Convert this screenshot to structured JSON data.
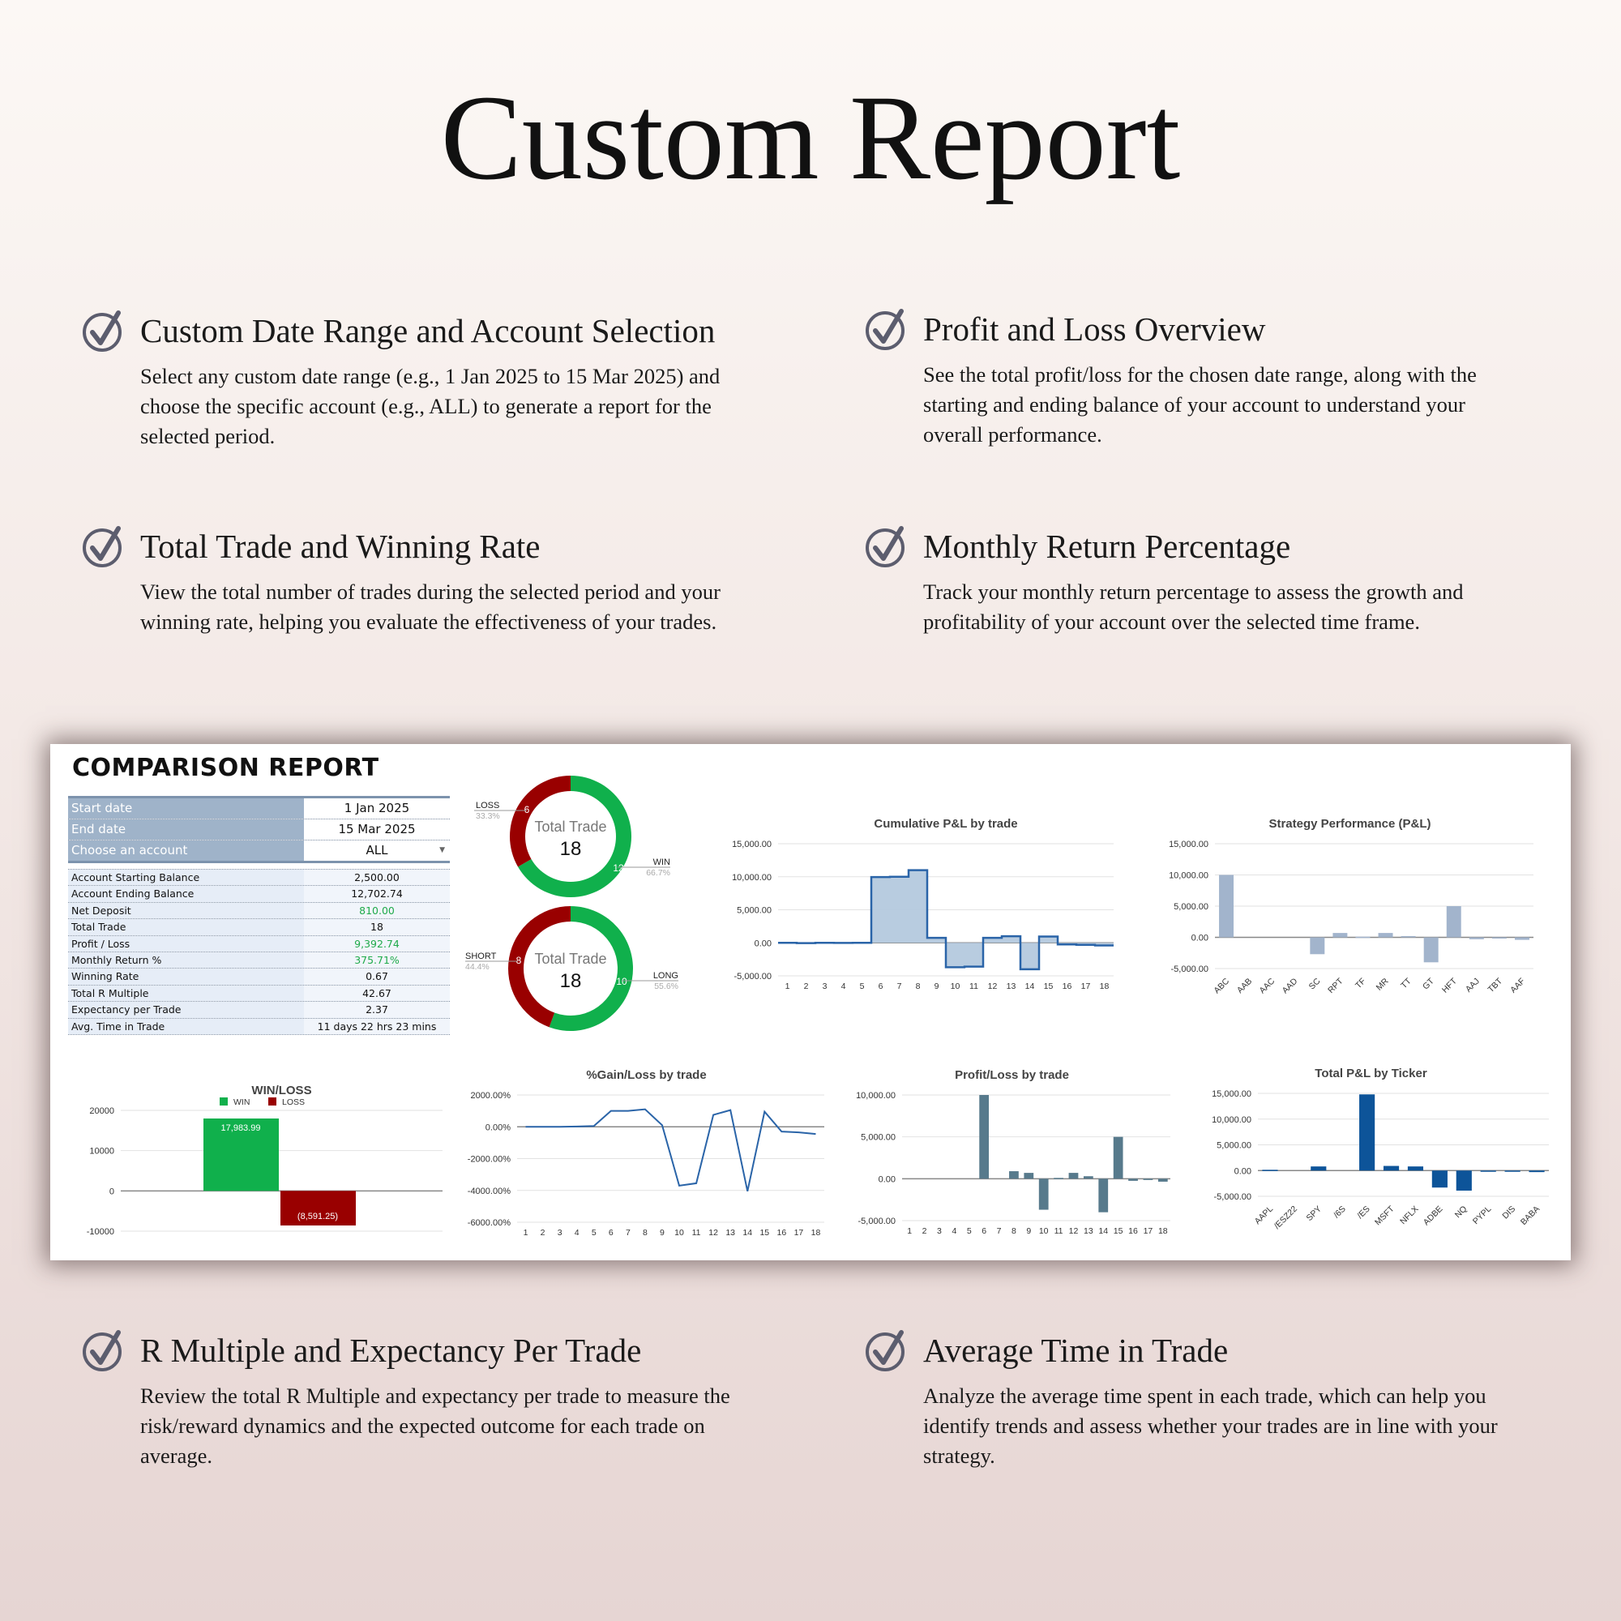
{
  "title": "Custom Report",
  "features": [
    {
      "heading": "Custom Date Range and Account Selection",
      "body": "Select any custom date range (e.g., 1 Jan 2025 to 15 Mar 2025) and choose the specific account (e.g., ALL) to generate a report for the selected period.",
      "icon": "check-circle-icon"
    },
    {
      "heading": "Profit and Loss Overview",
      "body": "See the total profit/loss for the chosen date range, along with the starting and ending balance of your account to understand your overall performance.",
      "icon": "check-circle-icon"
    },
    {
      "heading": "Total Trade and Winning Rate",
      "body": "View the total number of trades during the selected period and your winning rate, helping you evaluate the effectiveness of your trades.",
      "icon": "check-circle-icon"
    },
    {
      "heading": "Monthly Return Percentage",
      "body": "Track your monthly return percentage to assess the growth and profitability of your account over the selected time frame.",
      "icon": "check-circle-icon"
    },
    {
      "heading": "R Multiple and Expectancy Per Trade",
      "body": "Review the total R Multiple and expectancy per trade to measure the risk/reward dynamics and the expected outcome for each trade on average.",
      "icon": "check-circle-icon"
    },
    {
      "heading": "Average Time in Trade",
      "body": "Analyze the average time spent in each trade, which can help you identify trends and assess whether your trades are in line with your strategy.",
      "icon": "check-circle-icon"
    }
  ],
  "report": {
    "title": "COMPARISON REPORT",
    "filters": [
      {
        "label": "Start date",
        "value": "1 Jan 2025"
      },
      {
        "label": "End date",
        "value": "15 Mar 2025"
      },
      {
        "label": "Choose an account",
        "value": "ALL"
      }
    ],
    "stats": [
      {
        "label": "Account Starting Balance",
        "value": "2,500.00"
      },
      {
        "label": "Account Ending Balance",
        "value": "12,702.74"
      },
      {
        "label": "Net Deposit",
        "value": "810.00"
      },
      {
        "label": "Total Trade",
        "value": "18"
      },
      {
        "label": "Profit / Loss",
        "value": "9,392.74"
      },
      {
        "label": "Monthly Return %",
        "value": "375.71%"
      },
      {
        "label": "Winning Rate",
        "value": "0.67"
      },
      {
        "label": "Total R Multiple",
        "value": "42.67"
      },
      {
        "label": "Expectancy per Trade",
        "value": "2.37"
      },
      {
        "label": "Avg. Time in Trade",
        "value": "11 days 22 hrs 23 mins"
      }
    ],
    "colors": {
      "win": "#10b04c",
      "loss": "#990000",
      "header": "#9fb3c9",
      "positive_text": "#1faa4a"
    }
  },
  "chart_data": [
    {
      "type": "pie",
      "id": "winloss-donut",
      "center_label": "Total Trade",
      "center_value": "18",
      "slices": [
        {
          "name": "WIN",
          "value": 12,
          "percent": "66.7%",
          "color": "#10b04c"
        },
        {
          "name": "LOSS",
          "value": 6,
          "percent": "33.3%",
          "color": "#990000"
        }
      ]
    },
    {
      "type": "pie",
      "id": "longshort-donut",
      "center_label": "Total Trade",
      "center_value": "18",
      "slices": [
        {
          "name": "LONG",
          "value": 10,
          "percent": "55.6%",
          "color": "#10b04c"
        },
        {
          "name": "SHORT",
          "value": 8,
          "percent": "44.4%",
          "color": "#990000"
        }
      ]
    },
    {
      "type": "area",
      "id": "cumulative",
      "title": "Cumulative P&L by trade",
      "step": true,
      "color": "#2a64a8",
      "fill": "#b4c9de",
      "categories": [
        "1",
        "2",
        "3",
        "4",
        "5",
        "6",
        "7",
        "8",
        "9",
        "10",
        "11",
        "12",
        "13",
        "14",
        "15",
        "16",
        "17",
        "18"
      ],
      "values": [
        0,
        -50,
        0,
        -20,
        0,
        9950,
        10000,
        11000,
        750,
        -3700,
        -3600,
        750,
        1000,
        -4000,
        950,
        -250,
        -300,
        -400
      ],
      "ylim": [
        -5000,
        15000
      ],
      "yticks": [
        "15,000.00",
        "10,000.00",
        "5,000.00",
        "0.00",
        "-5,000.00"
      ],
      "grid": true
    },
    {
      "type": "bar",
      "id": "strategy",
      "title": "Strategy Performance (P&L)",
      "color": "#a2b4cc",
      "categories": [
        "ABC",
        "AAB",
        "AAC",
        "AAD",
        "SC",
        "RPT",
        "TF",
        "MR",
        "TT",
        "GT",
        "HFT",
        "AAJ",
        "TBT",
        "AAF"
      ],
      "values": [
        10000,
        0,
        0,
        0,
        -2700,
        700,
        100,
        700,
        200,
        -4000,
        5000,
        -300,
        -100,
        -400
      ],
      "ylim": [
        -5000,
        15000
      ],
      "yticks": [
        "15,000.00",
        "10,000.00",
        "5,000.00",
        "0.00",
        "-5,000.00"
      ],
      "grid": true
    },
    {
      "type": "bar",
      "id": "winloss-bar",
      "title": "WIN/LOSS",
      "legend": "top",
      "series": [
        {
          "name": "WIN",
          "value": 17983.99,
          "label": "17,983.99",
          "color": "#10b04c"
        },
        {
          "name": "LOSS",
          "value": -8591.25,
          "label": "(8,591.25)",
          "color": "#990000"
        }
      ],
      "ylim": [
        -10000,
        20000
      ],
      "yticks": [
        "20000",
        "10000",
        "0",
        "-10000"
      ],
      "grid": true
    },
    {
      "type": "line",
      "id": "gainloss",
      "title": "%Gain/Loss by trade",
      "color": "#2a64a8",
      "categories": [
        "1",
        "2",
        "3",
        "4",
        "5",
        "6",
        "7",
        "8",
        "9",
        "10",
        "11",
        "12",
        "13",
        "14",
        "15",
        "16",
        "17",
        "18"
      ],
      "values": [
        0,
        0,
        0,
        20,
        50,
        1000,
        1000,
        1100,
        100,
        -3700,
        -3550,
        750,
        1050,
        -4050,
        950,
        -300,
        -350,
        -450
      ],
      "ylim": [
        -6000,
        2000
      ],
      "yticks": [
        "2000.00%",
        "0.00%",
        "-2000.00%",
        "-4000.00%",
        "-6000.00%"
      ],
      "grid": true
    },
    {
      "type": "bar",
      "id": "pl-trade",
      "title": "Profit/Loss by trade",
      "color": "#577a8c",
      "categories": [
        "1",
        "2",
        "3",
        "4",
        "5",
        "6",
        "7",
        "8",
        "9",
        "10",
        "11",
        "12",
        "13",
        "14",
        "15",
        "16",
        "17",
        "18"
      ],
      "values": [
        0,
        0,
        0,
        0,
        0,
        10000,
        0,
        900,
        700,
        -3700,
        100,
        700,
        300,
        -4000,
        5000,
        -250,
        -150,
        -350
      ],
      "ylim": [
        -5000,
        10000
      ],
      "yticks": [
        "10,000.00",
        "5,000.00",
        "0.00",
        "-5,000.00"
      ],
      "grid": true
    },
    {
      "type": "bar",
      "id": "ticker",
      "title": "Total P&L by Ticker",
      "color": "#0d5499",
      "categories": [
        "AAPL",
        "/ESZ22",
        "SPY",
        "/6S",
        "/ES",
        "MSFT",
        "NFLX",
        "ADBE",
        "NQ",
        "PYPL",
        "DIS",
        "BABA"
      ],
      "values": [
        150,
        0,
        800,
        0,
        14800,
        900,
        800,
        -3300,
        -3900,
        -200,
        -50,
        -300
      ],
      "ylim": [
        -5000,
        15000
      ],
      "yticks": [
        "15,000.00",
        "10,000.00",
        "5,000.00",
        "0.00",
        "-5,000.00"
      ],
      "grid": true
    }
  ]
}
